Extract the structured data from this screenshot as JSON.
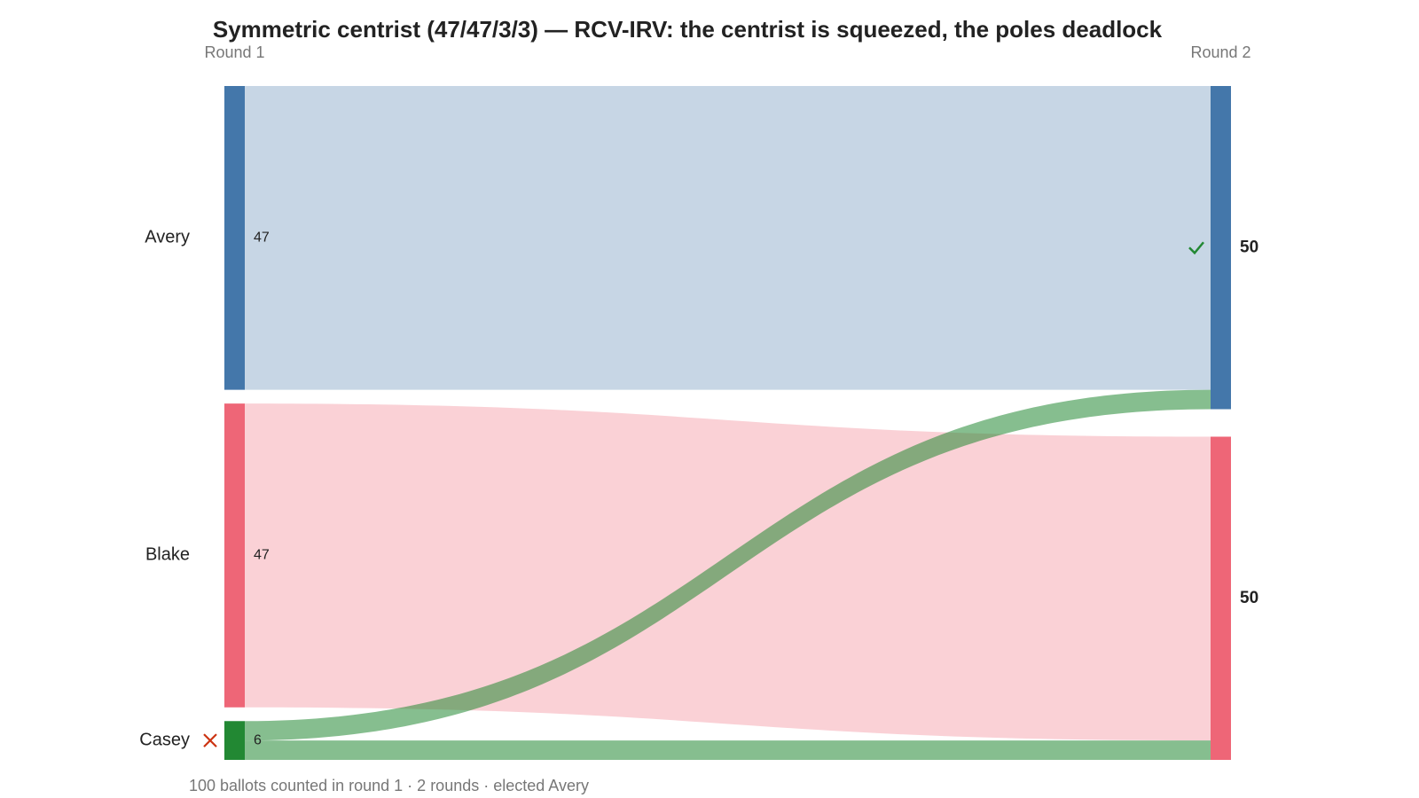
{
  "chart_data": {
    "type": "sankey",
    "title": "Symmetric centrist (47/47/3/3) — RCV-IRV: the centrist is squeezed, the poles deadlock",
    "footer": "100 ballots counted in round 1 · 2 rounds · elected Avery",
    "columns": [
      {
        "label": "Round 1",
        "nodes": [
          {
            "name": "Avery",
            "value": 47,
            "color": "#4477aa"
          },
          {
            "name": "Blake",
            "value": 47,
            "color": "#ee6677"
          },
          {
            "name": "Casey",
            "value": 6,
            "color": "#228833"
          }
        ]
      },
      {
        "label": "Round 2",
        "nodes": [
          {
            "value": 50,
            "color": "#4477aa"
          },
          {
            "value": 50,
            "color": "#ee6677"
          }
        ]
      }
    ],
    "flows": [
      {
        "from": [
          0,
          0
        ],
        "to": [
          1,
          0
        ],
        "value": 47
      },
      {
        "from": [
          0,
          1
        ],
        "to": [
          1,
          1
        ],
        "value": 47
      },
      {
        "from": [
          0,
          2
        ],
        "to": [
          1,
          0
        ],
        "value": 3
      },
      {
        "from": [
          0,
          2
        ],
        "to": [
          1,
          1
        ],
        "value": 3
      }
    ]
  }
}
